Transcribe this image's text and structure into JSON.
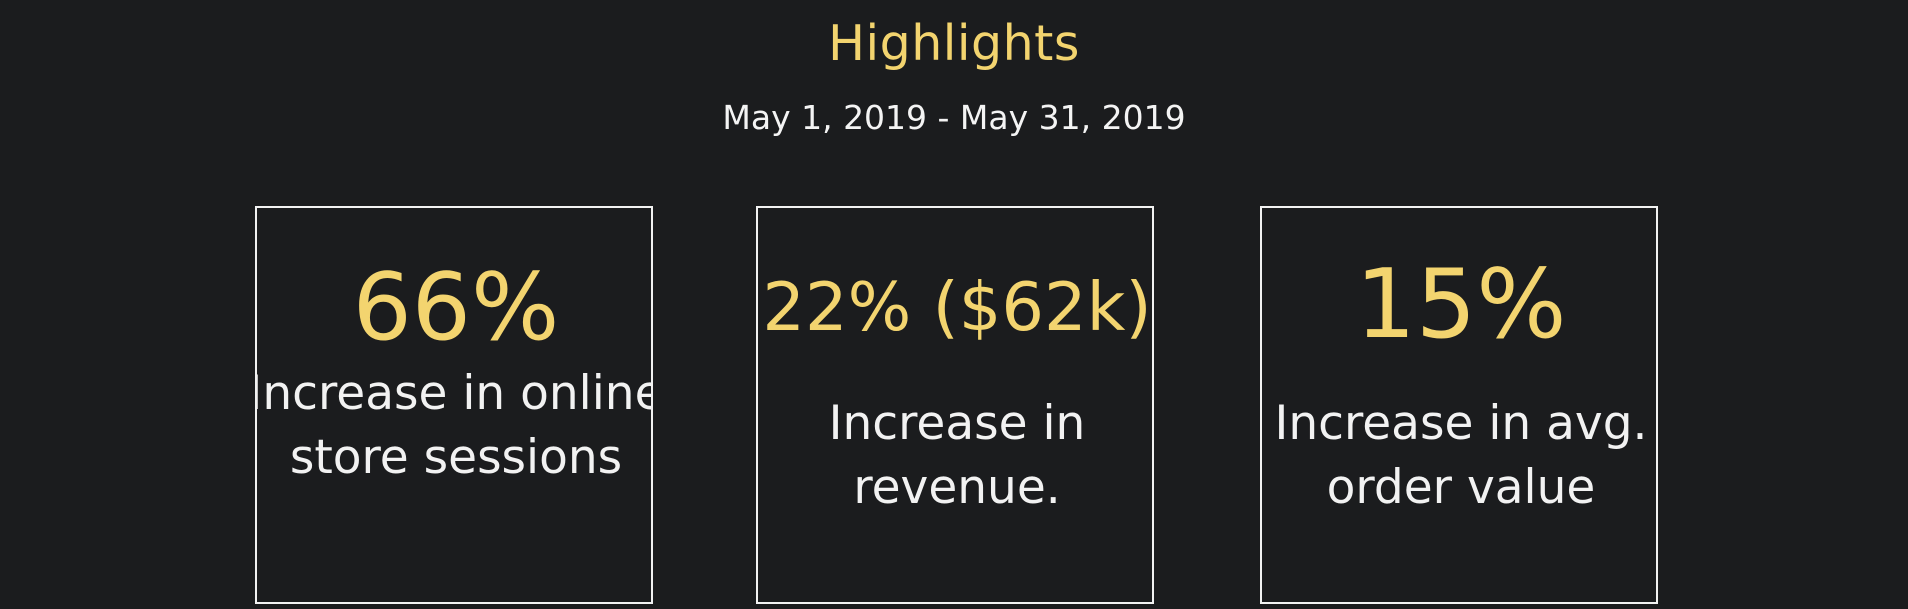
{
  "header": {
    "title": "Highlights",
    "date_range": "May 1, 2019 - May 31, 2019"
  },
  "cards": [
    {
      "value": "66%",
      "description": "Increase in online store sessions"
    },
    {
      "value": "22% ($62k)",
      "description": "Increase in revenue."
    },
    {
      "value": "15%",
      "description": "Increase in avg. order value"
    }
  ],
  "colors": {
    "background": "#1b1c1e",
    "accent": "#f3d46f",
    "text": "#f2f2f2"
  }
}
